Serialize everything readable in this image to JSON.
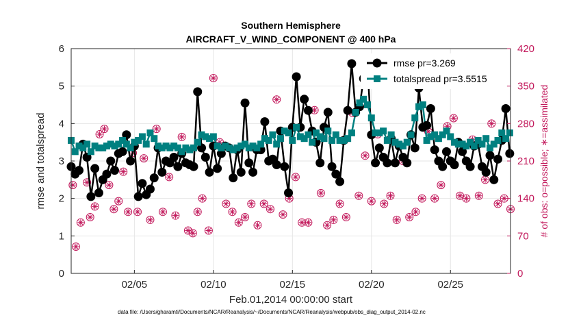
{
  "chart_data": {
    "type": "line",
    "title": "Southern Hemisphere",
    "subtitle": "AIRCRAFT_V_WIND_COMPONENT @ 400 hPa",
    "xlabel": "Feb.01,2014 00:00:00 start",
    "ylabel": "rmse and totalspread",
    "ylabel_right": "# of obs: o=possible; ∗=assimilated",
    "footnote": "data file: /Users/gharamti/Documents/NCAR/Reanalysis/~/Documents/NCAR/Reanalysis/webpub/obs_diag_output_2014-02.nc",
    "xlim": [
      1.0,
      28.8
    ],
    "ylim": [
      0,
      6
    ],
    "ylim_right": [
      0,
      420
    ],
    "x_ticks": [
      5,
      10,
      15,
      20,
      25
    ],
    "x_tick_labels": [
      "02/05",
      "02/10",
      "02/15",
      "02/20",
      "02/25"
    ],
    "y_ticks": [
      0,
      1,
      2,
      3,
      4,
      5,
      6
    ],
    "y_tick_labels": [
      "0",
      "1",
      "2",
      "3",
      "4",
      "5",
      "6"
    ],
    "y_right_ticks": [
      0,
      70,
      140,
      210,
      280,
      350,
      420
    ],
    "y_right_tick_labels": [
      "0",
      "70",
      "140",
      "210",
      "280",
      "350",
      "420"
    ],
    "grid": true,
    "legend_position": "top-right",
    "colors": {
      "rmse": "#000000",
      "totalspread": "#008080",
      "obs": "#c2185b"
    },
    "series": [
      {
        "name": "rmse pr=3.269",
        "x": [
          1.0,
          1.25,
          1.5,
          1.75,
          2.0,
          2.25,
          2.5,
          2.75,
          3.0,
          3.25,
          3.5,
          3.75,
          4.0,
          4.25,
          4.5,
          4.75,
          5.0,
          5.25,
          5.5,
          5.75,
          6.0,
          6.25,
          6.5,
          6.75,
          7.0,
          7.25,
          7.5,
          7.75,
          8.0,
          8.25,
          8.5,
          8.75,
          9.0,
          9.25,
          9.5,
          9.75,
          10.0,
          10.25,
          10.5,
          10.75,
          11.0,
          11.25,
          11.5,
          11.75,
          12.0,
          12.25,
          12.5,
          12.75,
          13.0,
          13.25,
          13.5,
          13.75,
          14.0,
          14.25,
          14.5,
          14.75,
          15.0,
          15.25,
          15.5,
          15.75,
          16.0,
          16.25,
          16.5,
          16.75,
          17.0,
          17.25,
          17.5,
          17.75,
          18.0,
          18.25,
          18.5,
          18.75,
          19.0,
          19.25,
          19.5,
          19.75,
          20.0,
          20.25,
          20.5,
          20.75,
          21.0,
          21.25,
          21.5,
          21.75,
          22.0,
          22.25,
          22.5,
          22.75,
          23.0,
          23.25,
          23.5,
          23.75,
          24.0,
          24.25,
          24.5,
          24.75,
          25.0,
          25.25,
          25.5,
          25.75,
          26.0,
          26.25,
          26.5,
          26.75,
          27.0,
          27.25,
          27.5,
          27.75,
          28.0,
          28.25,
          28.5,
          28.75
        ],
        "values": [
          2.85,
          2.65,
          2.75,
          3.45,
          3.1,
          2.05,
          2.8,
          2.15,
          2.5,
          2.65,
          3.0,
          2.75,
          3.2,
          3.25,
          3.7,
          3.0,
          3.4,
          2.05,
          2.4,
          2.1,
          2.25,
          2.55,
          3.35,
          2.7,
          3.0,
          2.95,
          3.1,
          2.85,
          3.2,
          2.95,
          2.9,
          2.85,
          4.85,
          3.35,
          3.1,
          2.7,
          3.4,
          2.8,
          3.2,
          3.4,
          3.35,
          2.55,
          3.3,
          2.7,
          4.55,
          2.95,
          2.7,
          3.3,
          3.3,
          4.05,
          3.0,
          3.05,
          2.9,
          3.8,
          2.85,
          2.15,
          3.9,
          5.25,
          3.9,
          4.65,
          4.35,
          3.8,
          3.5,
          2.95,
          3.9,
          4.3,
          2.85,
          2.65,
          2.45,
          3.55,
          4.35,
          5.6,
          4.3,
          4.45,
          5.2,
          5.5,
          3.7,
          2.95,
          3.35,
          3.1,
          2.95,
          3.6,
          2.95,
          3.4,
          3.1,
          2.95,
          3.7,
          3.35,
          4.95,
          3.9,
          3.95,
          4.4,
          3.3,
          3.0,
          2.85,
          3.25,
          3.0,
          2.9,
          3.5,
          3.25,
          3.0,
          2.85,
          3.4,
          3.45,
          2.85,
          2.7,
          3.15,
          2.5,
          3.05,
          3.55,
          4.4,
          3.2
        ],
        "markers": "filled-circle"
      },
      {
        "name": "totalspread pr=3.5515",
        "x": [
          1.0,
          1.25,
          1.5,
          1.75,
          2.0,
          2.25,
          2.5,
          2.75,
          3.0,
          3.25,
          3.5,
          3.75,
          4.0,
          4.25,
          4.5,
          4.75,
          5.0,
          5.25,
          5.5,
          5.75,
          6.0,
          6.25,
          6.5,
          6.75,
          7.0,
          7.25,
          7.5,
          7.75,
          8.0,
          8.25,
          8.5,
          8.75,
          9.0,
          9.25,
          9.5,
          9.75,
          10.0,
          10.25,
          10.5,
          10.75,
          11.0,
          11.25,
          11.5,
          11.75,
          12.0,
          12.25,
          12.5,
          12.75,
          13.0,
          13.25,
          13.5,
          13.75,
          14.0,
          14.25,
          14.5,
          14.75,
          15.0,
          15.25,
          15.5,
          15.75,
          16.0,
          16.25,
          16.5,
          16.75,
          17.0,
          17.25,
          17.5,
          17.75,
          18.0,
          18.25,
          18.5,
          18.75,
          19.0,
          19.25,
          19.5,
          19.75,
          20.0,
          20.25,
          20.5,
          20.75,
          21.0,
          21.25,
          21.5,
          21.75,
          22.0,
          22.25,
          22.5,
          22.75,
          23.0,
          23.25,
          23.5,
          23.75,
          24.0,
          24.25,
          24.5,
          24.75,
          25.0,
          25.25,
          25.5,
          25.75,
          26.0,
          26.25,
          26.5,
          26.75,
          27.0,
          27.25,
          27.5,
          27.75,
          28.0,
          28.25,
          28.5,
          28.75
        ],
        "values": [
          3.55,
          3.25,
          3.4,
          3.35,
          3.45,
          3.25,
          3.4,
          3.35,
          3.35,
          3.4,
          3.45,
          3.4,
          3.45,
          3.55,
          3.45,
          3.35,
          3.5,
          3.55,
          3.65,
          3.45,
          3.75,
          3.6,
          3.4,
          3.35,
          3.4,
          3.35,
          3.4,
          3.35,
          3.25,
          3.35,
          3.3,
          3.35,
          3.5,
          3.7,
          3.65,
          3.6,
          3.65,
          3.4,
          3.35,
          3.4,
          3.35,
          3.3,
          3.35,
          3.4,
          3.45,
          3.35,
          3.4,
          3.35,
          3.45,
          3.6,
          3.55,
          3.7,
          3.45,
          3.6,
          3.8,
          3.75,
          3.55,
          3.9,
          3.65,
          3.6,
          3.7,
          3.5,
          3.75,
          3.65,
          3.6,
          3.8,
          3.55,
          3.7,
          3.55,
          3.55,
          3.6,
          3.75,
          4.3,
          4.55,
          4.65,
          4.5,
          4.15,
          3.75,
          3.75,
          3.8,
          3.55,
          3.7,
          3.5,
          3.45,
          3.4,
          3.5,
          3.7,
          4.15,
          4.45,
          4.5,
          3.55,
          3.65,
          3.7,
          3.6,
          3.7,
          3.8,
          3.65,
          3.5,
          3.45,
          3.45,
          3.4,
          3.5,
          3.4,
          3.55,
          3.45,
          3.6,
          3.35,
          3.45,
          3.55,
          3.75,
          3.6,
          3.75
        ],
        "markers": "filled-square"
      },
      {
        "name": "obs possible",
        "axis": "right",
        "x": [
          1.1,
          1.3,
          1.6,
          2.0,
          2.2,
          2.5,
          2.8,
          3.1,
          3.4,
          3.7,
          4.0,
          4.3,
          4.6,
          4.9,
          5.2,
          5.6,
          6.0,
          6.4,
          6.8,
          7.2,
          7.6,
          8.0,
          8.4,
          8.7,
          9.0,
          9.3,
          9.7,
          10.0,
          10.4,
          10.8,
          11.2,
          11.6,
          12.0,
          12.4,
          12.8,
          13.2,
          13.6,
          14.0,
          14.4,
          14.8,
          15.2,
          15.6,
          16.0,
          16.4,
          16.8,
          17.2,
          17.6,
          18.0,
          18.4,
          18.8,
          19.2,
          19.6,
          20.0,
          20.4,
          20.8,
          21.2,
          21.6,
          22.0,
          22.4,
          22.8,
          23.2,
          23.6,
          24.0,
          24.4,
          24.8,
          25.2,
          25.6,
          26.0,
          26.4,
          26.8,
          27.2,
          27.6,
          28.0,
          28.4,
          28.8
        ],
        "values": [
          165,
          50,
          95,
          170,
          105,
          125,
          260,
          270,
          165,
          120,
          135,
          190,
          115,
          225,
          115,
          215,
          100,
          270,
          115,
          180,
          108,
          255,
          80,
          75,
          115,
          140,
          80,
          365,
          245,
          130,
          115,
          95,
          105,
          130,
          90,
          130,
          120,
          325,
          110,
          140,
          180,
          95,
          95,
          305,
          150,
          90,
          100,
          130,
          105,
          300,
          145,
          220,
          135,
          260,
          130,
          145,
          100,
          210,
          105,
          115,
          140,
          265,
          140,
          165,
          275,
          290,
          145,
          140,
          250,
          145,
          175,
          280,
          130,
          140,
          120
        ],
        "markers": "open-circle"
      },
      {
        "name": "obs assimilated",
        "axis": "right",
        "x": [
          1.1,
          1.3,
          1.6,
          2.0,
          2.2,
          2.5,
          2.8,
          3.1,
          3.4,
          3.7,
          4.0,
          4.3,
          4.6,
          4.9,
          5.2,
          5.6,
          6.0,
          6.4,
          6.8,
          7.2,
          7.6,
          8.0,
          8.4,
          8.7,
          9.0,
          9.3,
          9.7,
          10.0,
          10.4,
          10.8,
          11.2,
          11.6,
          12.0,
          12.4,
          12.8,
          13.2,
          13.6,
          14.0,
          14.4,
          14.8,
          15.2,
          15.6,
          16.0,
          16.4,
          16.8,
          17.2,
          17.6,
          18.0,
          18.4,
          18.8,
          19.2,
          19.6,
          20.0,
          20.4,
          20.8,
          21.2,
          21.6,
          22.0,
          22.4,
          22.8,
          23.2,
          23.6,
          24.0,
          24.4,
          24.8,
          25.2,
          25.6,
          26.0,
          26.4,
          26.8,
          27.2,
          27.6,
          28.0,
          28.4,
          28.8
        ],
        "values": [
          165,
          50,
          95,
          170,
          105,
          125,
          260,
          270,
          165,
          120,
          135,
          190,
          115,
          225,
          115,
          215,
          100,
          270,
          115,
          180,
          108,
          255,
          80,
          75,
          115,
          140,
          80,
          365,
          245,
          130,
          115,
          95,
          105,
          130,
          90,
          130,
          120,
          325,
          110,
          140,
          180,
          95,
          95,
          305,
          150,
          90,
          100,
          130,
          105,
          300,
          145,
          220,
          135,
          260,
          130,
          145,
          100,
          210,
          105,
          115,
          140,
          265,
          140,
          165,
          275,
          290,
          145,
          140,
          250,
          145,
          175,
          280,
          130,
          140,
          120
        ],
        "markers": "asterisk"
      }
    ]
  }
}
